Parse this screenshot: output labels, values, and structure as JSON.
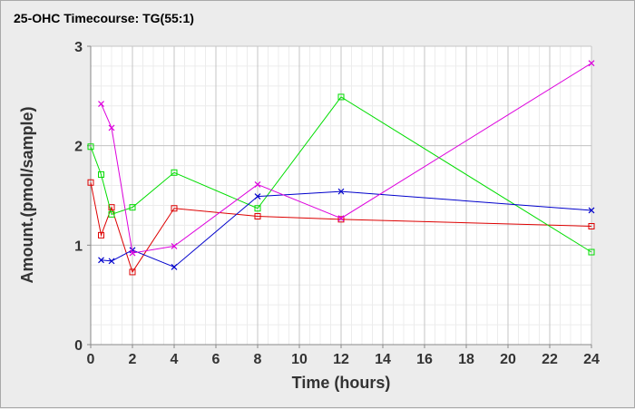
{
  "chart_data": {
    "type": "line",
    "title": "25-OHC Timecourse: TG(55:1)",
    "xlabel": "Time (hours)",
    "ylabel": "Amount.(pmol/sample)",
    "xlim": [
      0,
      24
    ],
    "ylim": [
      0,
      3
    ],
    "xticks": [
      0,
      2,
      4,
      6,
      8,
      10,
      12,
      14,
      16,
      18,
      20,
      22,
      24
    ],
    "yticks": [
      0,
      1,
      2,
      3
    ],
    "grid": true,
    "legend": "none",
    "series": [
      {
        "color": "#dd0000",
        "marker": "square",
        "points": [
          [
            0,
            1.63
          ],
          [
            0.5,
            1.1
          ],
          [
            1,
            1.38
          ],
          [
            2,
            0.73
          ],
          [
            4,
            1.37
          ],
          [
            8,
            1.29
          ],
          [
            12,
            1.26
          ],
          [
            24,
            1.19
          ]
        ]
      },
      {
        "color": "#00dd00",
        "marker": "square",
        "points": [
          [
            0,
            1.99
          ],
          [
            0.5,
            1.71
          ],
          [
            1,
            1.31
          ],
          [
            2,
            1.38
          ],
          [
            4,
            1.73
          ],
          [
            8,
            1.37
          ],
          [
            12,
            2.49
          ],
          [
            24,
            0.93
          ]
        ]
      },
      {
        "color": "#0000cc",
        "marker": "x",
        "points": [
          [
            0.5,
            0.85
          ],
          [
            1,
            0.84
          ],
          [
            2,
            0.95
          ],
          [
            4,
            0.78
          ],
          [
            8,
            1.49
          ],
          [
            12,
            1.54
          ],
          [
            24,
            1.35
          ]
        ]
      },
      {
        "color": "#dd00dd",
        "marker": "x",
        "points": [
          [
            0.5,
            2.42
          ],
          [
            1,
            2.18
          ],
          [
            2,
            0.92
          ],
          [
            4,
            0.99
          ],
          [
            8,
            1.61
          ],
          [
            12,
            1.27
          ],
          [
            24,
            2.83
          ]
        ]
      }
    ]
  }
}
